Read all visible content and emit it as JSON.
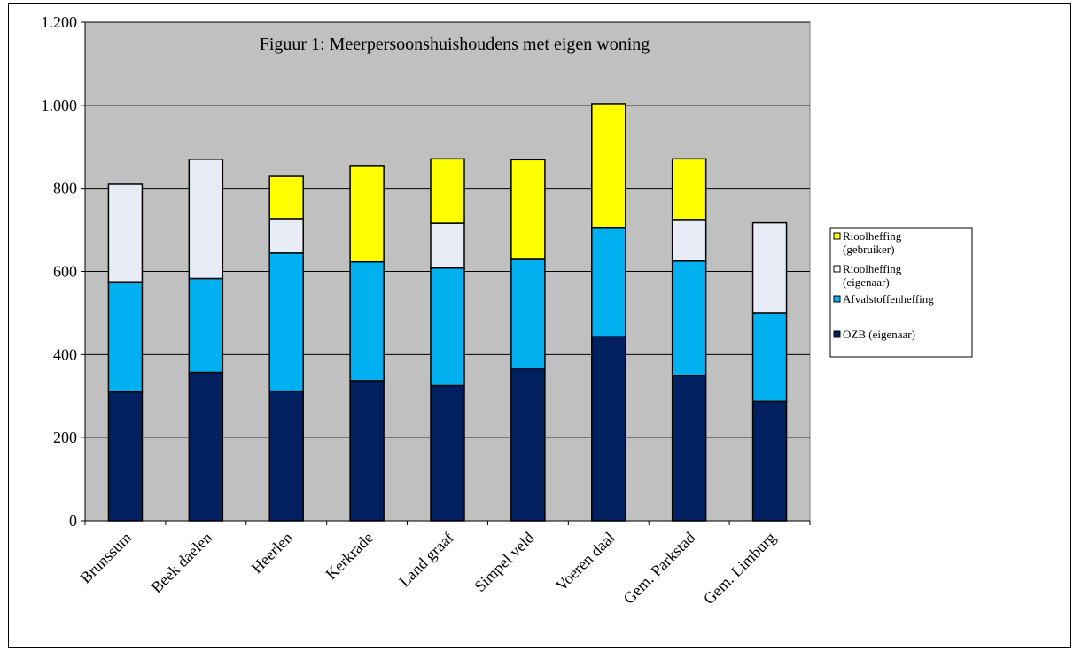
{
  "chart_data": {
    "type": "bar",
    "stacked": true,
    "title": "Figuur 1: Meerpersoonshuishoudens met eigen woning",
    "xlabel": "",
    "ylabel": "",
    "ylim": [
      0,
      1200
    ],
    "yticks": [
      0,
      200,
      400,
      600,
      800,
      1000,
      1200
    ],
    "ytick_labels": [
      "0",
      "200",
      "400",
      "600",
      "800",
      "1.000",
      "1.200"
    ],
    "grid": true,
    "legend_position": "right",
    "plot_background": "#C0C0C0",
    "categories": [
      "Brunssum",
      "Beek daelen",
      "Heerlen",
      "Kerkrade",
      "Land graaf",
      "Simpel veld",
      "Voeren daal",
      "Gem. Parkstad",
      "Gem. Limburg"
    ],
    "series": [
      {
        "name": "OZB (eigenaar)",
        "color": "#002060",
        "values": [
          310,
          357,
          312,
          337,
          325,
          367,
          443,
          350,
          287
        ]
      },
      {
        "name": "Afvalstoffenheffing",
        "color": "#00B0F0",
        "values": [
          265,
          226,
          332,
          286,
          283,
          264,
          263,
          275,
          214
        ]
      },
      {
        "name": "Rioolheffing (eigenaar)",
        "color": "#E8ECF6",
        "values": [
          235,
          287,
          83,
          0,
          108,
          0,
          0,
          100,
          216
        ]
      },
      {
        "name": "Rioolheffing (gebruiker)",
        "color": "#FFFF00",
        "values": [
          0,
          0,
          102,
          232,
          155,
          238,
          298,
          146,
          0
        ]
      }
    ],
    "legend": {
      "items": [
        {
          "label_lines": [
            "Rioolheffing",
            "(gebruiker)"
          ],
          "color": "#FFFF00"
        },
        {
          "label_lines": [
            "Rioolheffing",
            "(eigenaar)"
          ],
          "color": "#FFFFFF"
        },
        {
          "label_lines": [
            "Afvalstoffenheffing"
          ],
          "color": "#00B0F0"
        },
        {
          "label_lines": [
            "OZB (eigenaar)"
          ],
          "color": "#002060"
        }
      ]
    }
  }
}
